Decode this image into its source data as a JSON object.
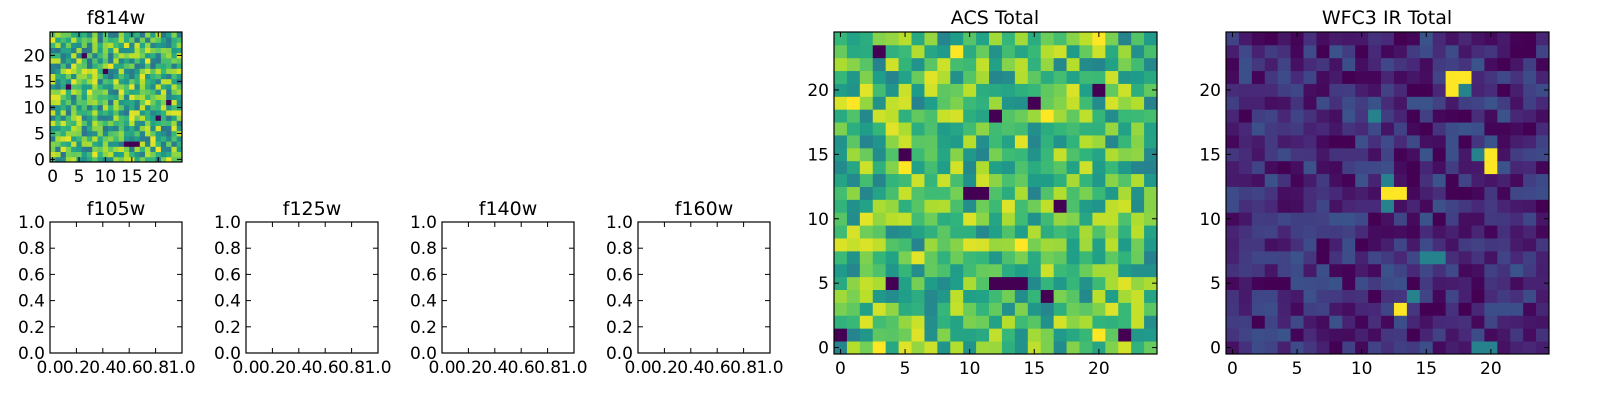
{
  "chart_data": [
    {
      "type": "heatmap",
      "title": "f814w",
      "grid_size": [
        25,
        25
      ],
      "xlim": [
        -0.5,
        24.5
      ],
      "ylim": [
        -0.5,
        24.5
      ],
      "xticks": [
        "0",
        "5",
        "10",
        "15",
        "20"
      ],
      "yticks": [
        "0",
        "5",
        "10",
        "15",
        "20"
      ],
      "colormap": "viridis",
      "value_range": [
        0,
        1
      ],
      "seed": 814,
      "base": 0.68,
      "spread": 0.3,
      "hot_spots": [],
      "dark_spots": [
        [
          14,
          3
        ],
        [
          15,
          3
        ],
        [
          16,
          3
        ],
        [
          6,
          20
        ],
        [
          20,
          8
        ],
        [
          3,
          14
        ],
        [
          22,
          11
        ],
        [
          10,
          17
        ]
      ],
      "grid": false
    },
    {
      "type": "scatter",
      "title": "f105w",
      "xlim": [
        0,
        1
      ],
      "ylim": [
        0,
        1
      ],
      "xticks": [
        "0.0",
        "0.2",
        "0.4",
        "0.6",
        "0.8",
        "1.0"
      ],
      "yticks": [
        "0.0",
        "0.2",
        "0.4",
        "0.6",
        "0.8",
        "1.0"
      ],
      "series": [],
      "grid": false
    },
    {
      "type": "scatter",
      "title": "f125w",
      "xlim": [
        0,
        1
      ],
      "ylim": [
        0,
        1
      ],
      "xticks": [
        "0.0",
        "0.2",
        "0.4",
        "0.6",
        "0.8",
        "1.0"
      ],
      "yticks": [
        "0.0",
        "0.2",
        "0.4",
        "0.6",
        "0.8",
        "1.0"
      ],
      "series": [],
      "grid": false
    },
    {
      "type": "scatter",
      "title": "f140w",
      "xlim": [
        0,
        1
      ],
      "ylim": [
        0,
        1
      ],
      "xticks": [
        "0.0",
        "0.2",
        "0.4",
        "0.6",
        "0.8",
        "1.0"
      ],
      "yticks": [
        "0.0",
        "0.2",
        "0.4",
        "0.6",
        "0.8",
        "1.0"
      ],
      "series": [],
      "grid": false
    },
    {
      "type": "scatter",
      "title": "f160w",
      "xlim": [
        0,
        1
      ],
      "ylim": [
        0,
        1
      ],
      "xticks": [
        "0.0",
        "0.2",
        "0.4",
        "0.6",
        "0.8",
        "1.0"
      ],
      "yticks": [
        "0.0",
        "0.2",
        "0.4",
        "0.6",
        "0.8",
        "1.0"
      ],
      "series": [],
      "grid": false
    },
    {
      "type": "heatmap",
      "title": "ACS Total",
      "grid_size": [
        25,
        25
      ],
      "xlim": [
        -0.5,
        24.5
      ],
      "ylim": [
        -0.5,
        24.5
      ],
      "xticks": [
        "0",
        "5",
        "10",
        "15",
        "20"
      ],
      "yticks": [
        "0",
        "5",
        "10",
        "15",
        "20"
      ],
      "colormap": "viridis",
      "value_range": [
        0,
        1
      ],
      "seed": 2024,
      "base": 0.7,
      "spread": 0.26,
      "hot_spots": [
        [
          3,
          0
        ],
        [
          20,
          1
        ],
        [
          1,
          19
        ],
        [
          14,
          8
        ],
        [
          20,
          24
        ],
        [
          16,
          18
        ],
        [
          9,
          23
        ],
        [
          5,
          14
        ]
      ],
      "dark_spots": [
        [
          12,
          5
        ],
        [
          13,
          5
        ],
        [
          14,
          5
        ],
        [
          11,
          12
        ],
        [
          16,
          4
        ],
        [
          0,
          1
        ],
        [
          10,
          12
        ],
        [
          3,
          23
        ],
        [
          5,
          15
        ],
        [
          15,
          19
        ],
        [
          22,
          1
        ],
        [
          12,
          18
        ],
        [
          17,
          11
        ],
        [
          20,
          20
        ],
        [
          4,
          5
        ]
      ],
      "grid": false
    },
    {
      "type": "heatmap",
      "title": "WFC3 IR Total",
      "grid_size": [
        25,
        25
      ],
      "xlim": [
        -0.5,
        24.5
      ],
      "ylim": [
        -0.5,
        24.5
      ],
      "xticks": [
        "0",
        "5",
        "10",
        "15",
        "20"
      ],
      "yticks": [
        "0",
        "5",
        "10",
        "15",
        "20"
      ],
      "colormap": "viridis",
      "value_range": [
        0,
        1
      ],
      "seed": 3,
      "base": 0.12,
      "spread": 0.14,
      "hot_spots": [
        [
          17,
          21
        ],
        [
          18,
          21
        ],
        [
          17,
          20
        ],
        [
          12,
          12
        ],
        [
          13,
          12
        ],
        [
          20,
          15
        ],
        [
          20,
          14
        ],
        [
          13,
          3
        ]
      ],
      "warm_spots": [
        [
          18,
          20
        ],
        [
          12,
          13
        ],
        [
          12,
          11
        ],
        [
          15,
          7
        ],
        [
          16,
          7
        ],
        [
          20,
          0
        ],
        [
          19,
          0
        ],
        [
          14,
          4
        ],
        [
          11,
          18
        ],
        [
          19,
          15
        ]
      ],
      "dark_spots": [],
      "grid": false
    }
  ]
}
